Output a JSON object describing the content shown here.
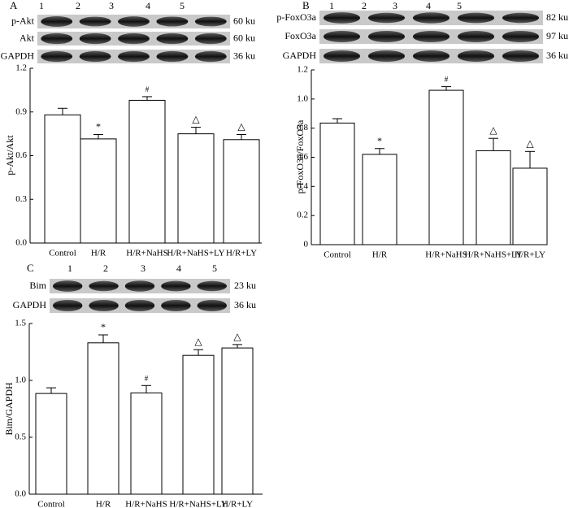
{
  "panels": [
    {
      "letter": "A",
      "lanes": [
        "1",
        "2",
        "3",
        "4",
        "5"
      ],
      "blots": [
        {
          "protein": "p-Akt",
          "size": "60 ku"
        },
        {
          "protein": "Akt",
          "size": "60 ku"
        },
        {
          "protein": "GAPDH",
          "size": "36 ku"
        }
      ]
    },
    {
      "letter": "B",
      "lanes": [
        "1",
        "2",
        "3",
        "4",
        "5"
      ],
      "blots": [
        {
          "protein": "p-FoxO3a",
          "size": "82 ku"
        },
        {
          "protein": "FoxO3a",
          "size": "97 ku"
        },
        {
          "protein": "GAPDH",
          "size": "36 ku"
        }
      ]
    },
    {
      "letter": "C",
      "lanes": [
        "1",
        "2",
        "3",
        "4",
        "5"
      ],
      "blots": [
        {
          "protein": "Bim",
          "size": "23 ku"
        },
        {
          "protein": "GAPDH",
          "size": "36 ku"
        }
      ]
    }
  ],
  "chart_data": [
    {
      "type": "bar",
      "categories": [
        "Control",
        "H/R",
        "H/R+NaHS",
        "H/R+NaHS+LY",
        "H/R+LY"
      ],
      "values": [
        0.88,
        0.715,
        0.98,
        0.75,
        0.71
      ],
      "errors": [
        0.045,
        0.03,
        0.025,
        0.045,
        0.035
      ],
      "annotations": [
        "",
        "*",
        "#",
        "△",
        "△"
      ],
      "ylabel": "p-Akt/Akt",
      "xlabel": "",
      "ylim": [
        0,
        1.2
      ],
      "yticks": [
        "0.0",
        "0.3",
        "0.6",
        "0.9",
        "1.2"
      ],
      "grid": false
    },
    {
      "type": "bar",
      "categories": [
        "Control",
        "H/R",
        "H/R+NaHS",
        "H/R+NaHS+LY",
        "H/R+LY"
      ],
      "values": [
        0.835,
        0.62,
        1.06,
        0.645,
        0.525
      ],
      "errors": [
        0.03,
        0.04,
        0.025,
        0.085,
        0.115
      ],
      "annotations": [
        "",
        "*",
        "#",
        "△",
        "△"
      ],
      "ylabel": "p-FoxO3a/FoxO3a",
      "xlabel": "",
      "ylim": [
        0,
        1.2
      ],
      "yticks": [
        "0",
        "0.2",
        "0.4",
        "0.6",
        "0.8",
        "1.0",
        "1.2"
      ],
      "grid": false
    },
    {
      "type": "bar",
      "categories": [
        "Control",
        "H/R",
        "H/R+NaHS",
        "H/R+NaHS+LY",
        "H/R+LY"
      ],
      "values": [
        0.885,
        1.33,
        0.89,
        1.22,
        1.285
      ],
      "errors": [
        0.05,
        0.07,
        0.065,
        0.05,
        0.03
      ],
      "annotations": [
        "",
        "*",
        "#",
        "△",
        "△"
      ],
      "ylabel": "Bim/GAPDH",
      "xlabel": "",
      "ylim": [
        0,
        1.5
      ],
      "yticks": [
        "0.0",
        "0.5",
        "1.0",
        "1.5"
      ],
      "grid": false
    }
  ]
}
